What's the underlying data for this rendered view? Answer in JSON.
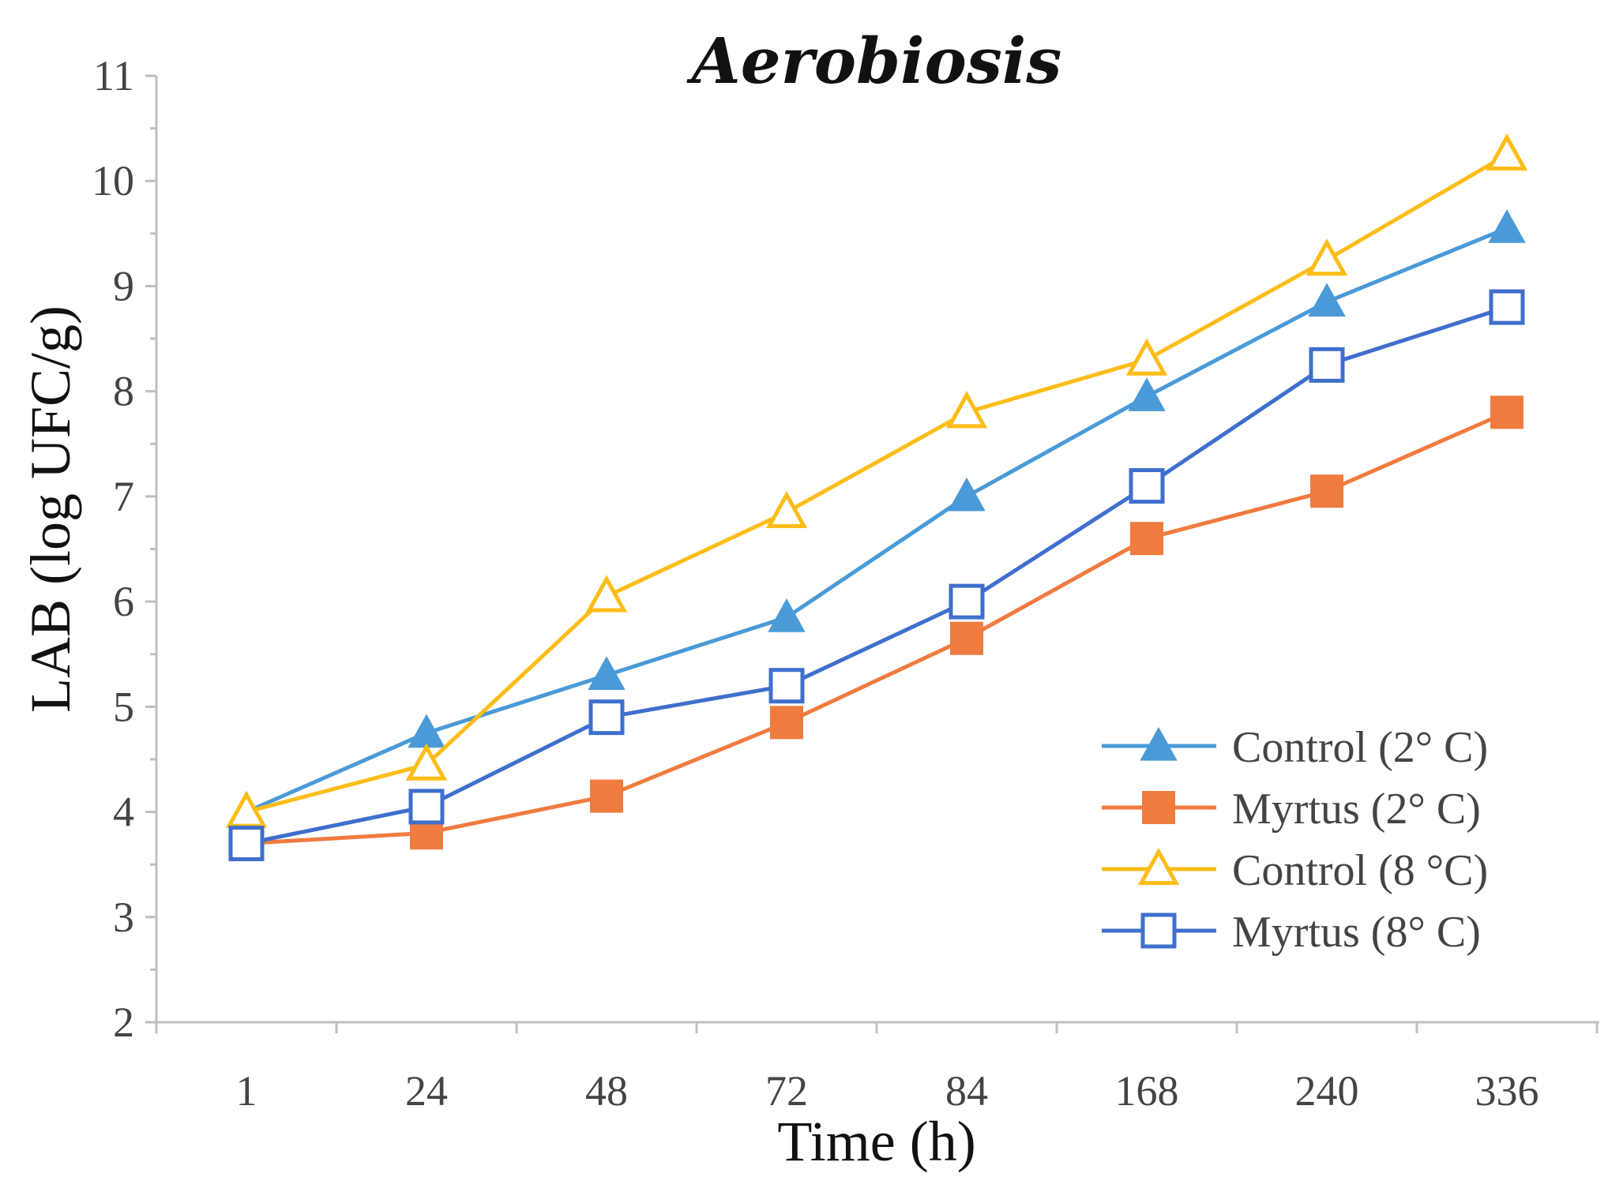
{
  "chart_data": {
    "type": "line",
    "title": "Aerobiosis",
    "xlabel": "Time (h)",
    "ylabel": "LAB (log UFC/g)",
    "categories": [
      "1",
      "24",
      "48",
      "72",
      "84",
      "168",
      "240",
      "336"
    ],
    "ylim": [
      2,
      11
    ],
    "yticks": [
      "2",
      "3",
      "4",
      "5",
      "6",
      "7",
      "8",
      "9",
      "10",
      "11"
    ],
    "grid": false,
    "legend_position": "bottom-right",
    "series": [
      {
        "name": "Control (2° C)",
        "color": "#4a9ad8",
        "marker": "triangle-filled",
        "values": [
          4.0,
          4.75,
          5.3,
          5.85,
          7.0,
          7.95,
          8.85,
          9.55
        ]
      },
      {
        "name": "Myrtus (2° C)",
        "color": "#f07b3f",
        "marker": "square-filled",
        "values": [
          3.7,
          3.8,
          4.15,
          4.85,
          5.65,
          6.6,
          7.05,
          7.8
        ]
      },
      {
        "name": "Control (8 °C)",
        "color": "#fdbd18",
        "marker": "triangle-open",
        "values": [
          4.0,
          4.45,
          6.05,
          6.85,
          7.8,
          8.3,
          9.25,
          10.25
        ]
      },
      {
        "name": "Myrtus (8° C)",
        "color": "#3f6fce",
        "marker": "square-open",
        "values": [
          3.7,
          4.05,
          4.9,
          5.2,
          6.0,
          7.1,
          8.25,
          8.8
        ]
      }
    ]
  }
}
